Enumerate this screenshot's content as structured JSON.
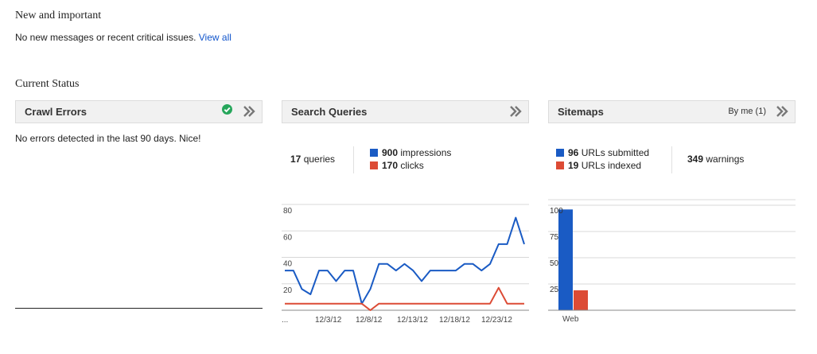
{
  "new_section": {
    "title": "New and important",
    "message": "No new messages or recent critical issues.",
    "view_all": "View all"
  },
  "status_section": {
    "title": "Current Status"
  },
  "crawl_errors": {
    "title": "Crawl Errors",
    "message": "No errors detected in the last 90 days. Nice!",
    "status_icon": "check-circle-icon"
  },
  "search_queries": {
    "title": "Search Queries",
    "queries_count": "17",
    "queries_label": "queries",
    "impressions_count": "900",
    "impressions_label": "impressions",
    "clicks_count": "170",
    "clicks_label": "clicks"
  },
  "sitemaps": {
    "title": "Sitemaps",
    "filter_label": "By me (1)",
    "submitted_count": "96",
    "submitted_label": "URLs submitted",
    "indexed_count": "19",
    "indexed_label": "URLs indexed",
    "warnings_count": "349",
    "warnings_label": "warnings"
  },
  "colors": {
    "blue": "#1a5bc4",
    "red": "#dc4b35",
    "link": "#1155cc"
  },
  "chart_data": [
    {
      "type": "line",
      "x_tick_labels": [
        "...",
        "12/3/12",
        "12/8/12",
        "12/13/12",
        "12/18/12",
        "12/23/12"
      ],
      "y_ticks": [
        "80",
        "60",
        "40",
        "20"
      ],
      "ylim": [
        0,
        80
      ],
      "series": [
        {
          "color": "#1a5bc4",
          "values": [
            30,
            30,
            16,
            12,
            30,
            30,
            22,
            30,
            30,
            5,
            16,
            35,
            35,
            30,
            35,
            30,
            22,
            30,
            30,
            30,
            30,
            35,
            35,
            30,
            35,
            50,
            50,
            70,
            50
          ]
        },
        {
          "color": "#dc4b35",
          "values": [
            5,
            5,
            5,
            5,
            5,
            5,
            5,
            5,
            5,
            5,
            0,
            5,
            5,
            5,
            5,
            5,
            5,
            5,
            5,
            5,
            5,
            5,
            5,
            5,
            5,
            17,
            5,
            5,
            5
          ]
        }
      ]
    },
    {
      "type": "bar",
      "categories": [
        "Web"
      ],
      "y_ticks": [
        "100",
        "75",
        "50",
        "25"
      ],
      "ylim": [
        0,
        100
      ],
      "series": [
        {
          "name": "URLs submitted",
          "color": "#1a5bc4",
          "values": [
            96
          ]
        },
        {
          "name": "URLs indexed",
          "color": "#dc4b35",
          "values": [
            19
          ]
        }
      ]
    }
  ]
}
